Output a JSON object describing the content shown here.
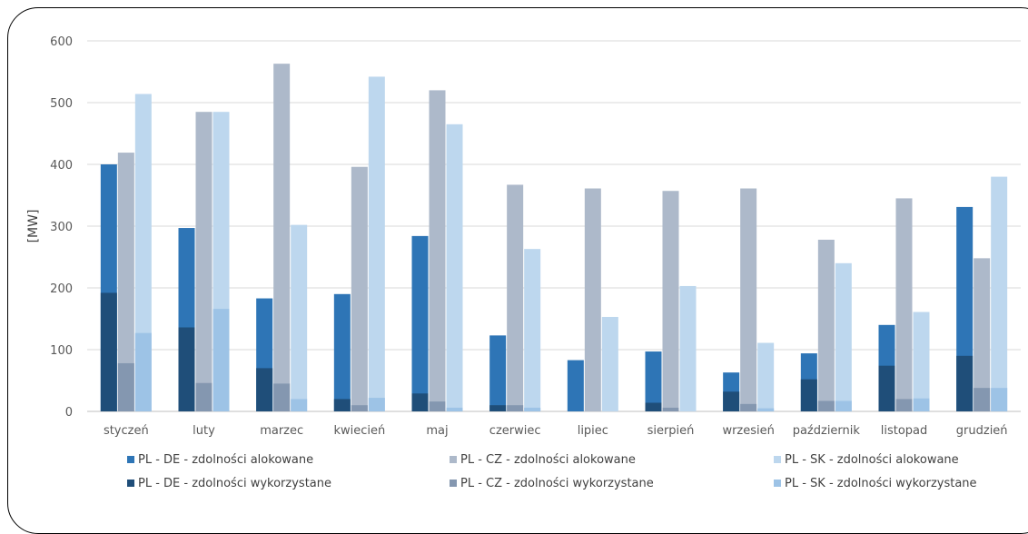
{
  "chart_data": {
    "type": "bar",
    "title": "",
    "xlabel": "",
    "ylabel": "[MW]",
    "ylim": [
      0,
      600
    ],
    "yticks": [
      "0",
      "100",
      "200",
      "300",
      "400",
      "500",
      "600"
    ],
    "grid": true,
    "legend_position": "bottom",
    "categories": [
      "styczeń",
      "luty",
      "marzec",
      "kwiecień",
      "maj",
      "czerwiec",
      "lipiec",
      "sierpień",
      "wrzesień",
      "październik",
      "listopad",
      "grudzień"
    ],
    "series": [
      {
        "name": "PL - DE - zdolności alokowane",
        "color": "#2e75b6",
        "group": "PL-DE",
        "values": [
          400,
          297,
          183,
          190,
          284,
          123,
          83,
          97,
          63,
          94,
          140,
          331
        ]
      },
      {
        "name": "PL - DE - zdolności wykorzystane",
        "color": "#1f4e79",
        "group": "PL-DE",
        "values": [
          192,
          136,
          70,
          20,
          29,
          10,
          0,
          14,
          32,
          52,
          74,
          90
        ]
      },
      {
        "name": "PL - CZ - zdolności alokowane",
        "color": "#adb9ca",
        "group": "PL-CZ",
        "values": [
          419,
          485,
          563,
          396,
          520,
          367,
          361,
          357,
          361,
          278,
          345,
          248
        ]
      },
      {
        "name": "PL - CZ - zdolności wykorzystane",
        "color": "#8497b0",
        "group": "PL-CZ",
        "values": [
          78,
          46,
          45,
          10,
          16,
          10,
          0,
          6,
          12,
          17,
          20,
          38
        ]
      },
      {
        "name": "PL - SK - zdolności alokowane",
        "color": "#bdd7ee",
        "group": "PL-SK",
        "values": [
          514,
          485,
          302,
          542,
          465,
          263,
          153,
          203,
          111,
          240,
          161,
          380
        ]
      },
      {
        "name": "PL - SK - zdolności wykorzystane",
        "color": "#9dc3e6",
        "group": "PL-SK",
        "values": [
          127,
          166,
          20,
          22,
          6,
          6,
          0,
          0,
          5,
          17,
          21,
          38
        ]
      }
    ]
  }
}
